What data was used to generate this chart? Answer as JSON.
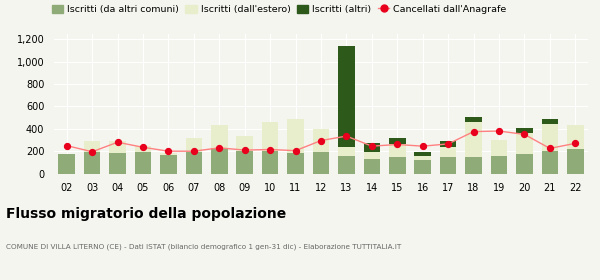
{
  "years": [
    "02",
    "03",
    "04",
    "05",
    "06",
    "07",
    "08",
    "09",
    "10",
    "11",
    "12",
    "13",
    "14",
    "15",
    "16",
    "17",
    "18",
    "19",
    "20",
    "21",
    "22"
  ],
  "iscritti_altri_comuni": [
    175,
    195,
    185,
    195,
    165,
    195,
    230,
    205,
    205,
    185,
    190,
    155,
    130,
    145,
    125,
    145,
    150,
    155,
    175,
    200,
    220
  ],
  "iscritti_estero": [
    0,
    100,
    105,
    55,
    20,
    120,
    205,
    135,
    255,
    300,
    210,
    80,
    60,
    120,
    35,
    95,
    310,
    145,
    185,
    240,
    210
  ],
  "iscritti_altri": [
    0,
    0,
    0,
    0,
    0,
    0,
    0,
    0,
    0,
    0,
    0,
    900,
    80,
    50,
    30,
    50,
    45,
    0,
    45,
    45,
    0
  ],
  "cancellati": [
    250,
    195,
    280,
    235,
    200,
    200,
    230,
    210,
    215,
    205,
    295,
    335,
    245,
    260,
    245,
    265,
    375,
    380,
    350,
    225,
    270
  ],
  "color_altri_comuni": "#8fac78",
  "color_estero": "#e8eecc",
  "color_altri": "#2d5a1b",
  "color_cancellati": "#e8001c",
  "color_line": "#ff8080",
  "ylim": [
    0,
    1250
  ],
  "yticks": [
    0,
    200,
    400,
    600,
    800,
    1000,
    1200
  ],
  "title": "Flusso migratorio della popolazione",
  "subtitle": "COMUNE DI VILLA LITERNO (CE) - Dati ISTAT (bilancio demografico 1 gen-31 dic) - Elaborazione TUTTITALIA.IT",
  "legend_labels": [
    "Iscritti (da altri comuni)",
    "Iscritti (dall'estero)",
    "Iscritti (altri)",
    "Cancellati dall'Anagrafe"
  ],
  "bg_color": "#f5f5f0"
}
